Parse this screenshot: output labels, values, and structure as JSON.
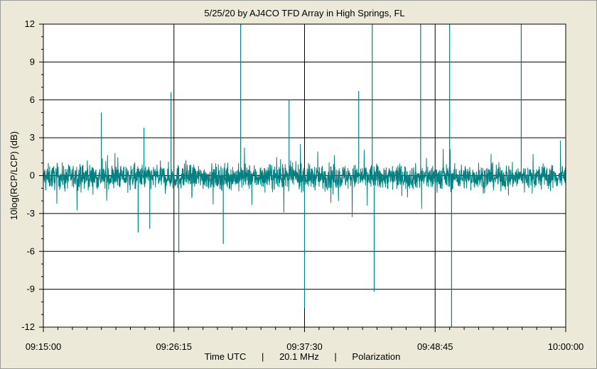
{
  "chart_data": {
    "type": "line",
    "title": "5/25/20  by  AJ4CO TFD Array  in  High Springs, FL",
    "xlabel": "Time UTC      |      20.1 MHz      |      Polarization",
    "ylabel": "10log(RCP/LCP) (dB)",
    "ylim": [
      -12,
      12
    ],
    "yticks": [
      "12",
      "9",
      "6",
      "3",
      "0",
      "-3",
      "-6",
      "-9",
      "-12"
    ],
    "xlim": [
      "09:15:00",
      "10:00:00"
    ],
    "xticks": [
      "09:15:00",
      "09:26:15",
      "09:37:30",
      "09:48:45",
      "10:00:00"
    ],
    "grid": true,
    "colors": {
      "trace": "#008080",
      "background": "#ffffff",
      "grid": "#000000",
      "frame": "#ece9d8"
    },
    "series": [
      {
        "band": {
          "low": -1.2,
          "high": 1.0
        },
        "spikes": [
          {
            "t": "09:20:00",
            "y": 5.0
          },
          {
            "t": "09:23:10",
            "y": -4.5
          },
          {
            "t": "09:23:40",
            "y": 3.8
          },
          {
            "t": "09:24:10",
            "y": -4.2
          },
          {
            "t": "09:26:00",
            "y": 6.6
          },
          {
            "t": "09:26:40",
            "y": -6.1
          },
          {
            "t": "09:30:30",
            "y": -5.4
          },
          {
            "t": "09:32:00",
            "y": 12.0
          },
          {
            "t": "09:36:10",
            "y": 6.0
          },
          {
            "t": "09:37:30",
            "y": -10.5
          },
          {
            "t": "09:42:10",
            "y": 6.7
          },
          {
            "t": "09:43:20",
            "y": 12.0
          },
          {
            "t": "09:43:30",
            "y": -9.2
          },
          {
            "t": "09:47:30",
            "y": 12.0
          },
          {
            "t": "09:50:00",
            "y": 12.0
          },
          {
            "t": "09:50:10",
            "y": -12.0
          },
          {
            "t": "09:56:10",
            "y": 12.0
          }
        ]
      }
    ]
  }
}
